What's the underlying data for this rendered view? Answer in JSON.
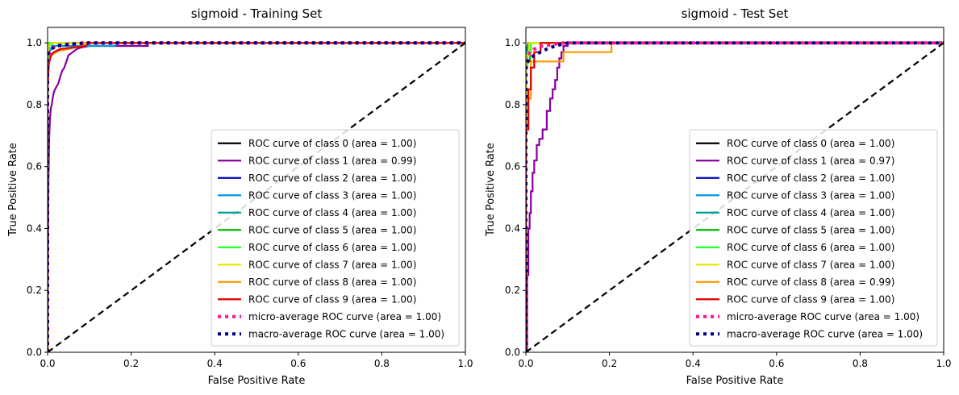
{
  "chart_data": [
    {
      "type": "line",
      "title": "sigmoid - Training Set",
      "xlabel": "False Positive Rate",
      "ylabel": "True Positive Rate",
      "xlim": [
        0.0,
        1.0
      ],
      "ylim": [
        0.0,
        1.05
      ],
      "xticks": [
        "0.0",
        "0.2",
        "0.4",
        "0.6",
        "0.8",
        "1.0"
      ],
      "yticks": [
        "0.0",
        "0.2",
        "0.4",
        "0.6",
        "0.8",
        "1.0"
      ],
      "grid": false,
      "legend_position": "lower right",
      "series": [
        {
          "name": "ROC curve of class 0 (area = 1.00)",
          "color": "#000000",
          "style": "solid",
          "x": [
            0,
            0,
            0.003,
            0.006,
            1.0
          ],
          "y": [
            0,
            0.97,
            0.995,
            1.0,
            1.0
          ]
        },
        {
          "name": "ROC curve of class 1 (area = 0.99)",
          "color": "#8800a0",
          "style": "solid",
          "x": [
            0,
            0.002,
            0.004,
            0.006,
            0.008,
            0.01,
            0.012,
            0.015,
            0.018,
            0.022,
            0.026,
            0.03,
            0.035,
            0.04,
            0.045,
            0.05,
            0.06,
            0.07,
            0.08,
            0.1,
            0.15,
            0.24,
            0.24,
            1.0
          ],
          "y": [
            0,
            0.55,
            0.7,
            0.76,
            0.79,
            0.8,
            0.82,
            0.84,
            0.85,
            0.86,
            0.87,
            0.89,
            0.91,
            0.92,
            0.94,
            0.96,
            0.97,
            0.98,
            0.985,
            0.99,
            0.99,
            0.99,
            1.0,
            1.0
          ]
        },
        {
          "name": "ROC curve of class 2 (area = 1.00)",
          "color": "#0000bb",
          "style": "solid",
          "x": [
            0,
            0,
            0.004,
            0.01,
            1.0
          ],
          "y": [
            0,
            0.96,
            0.99,
            1.0,
            1.0
          ]
        },
        {
          "name": "ROC curve of class 3 (area = 1.00)",
          "color": "#0099dd",
          "style": "solid",
          "x": [
            0,
            0,
            0.004,
            0.012,
            0.16,
            0.17,
            1.0
          ],
          "y": [
            0,
            0.92,
            0.97,
            0.99,
            0.99,
            1.0,
            1.0
          ]
        },
        {
          "name": "ROC curve of class 4 (area = 1.00)",
          "color": "#00a090",
          "style": "solid",
          "x": [
            0,
            0,
            0.003,
            0.015,
            1.0
          ],
          "y": [
            0,
            0.95,
            0.99,
            1.0,
            1.0
          ]
        },
        {
          "name": "ROC curve of class 5 (area = 1.00)",
          "color": "#00bb00",
          "style": "solid",
          "x": [
            0,
            0,
            0.004,
            0.01,
            1.0
          ],
          "y": [
            0,
            0.96,
            0.99,
            1.0,
            1.0
          ]
        },
        {
          "name": "ROC curve of class 6 (area = 1.00)",
          "color": "#22ff22",
          "style": "solid",
          "x": [
            0,
            0,
            0.003,
            0.03,
            1.0
          ],
          "y": [
            0,
            0.97,
            1.0,
            1.0,
            1.0
          ]
        },
        {
          "name": "ROC curve of class 7 (area = 1.00)",
          "color": "#e8e800",
          "style": "solid",
          "x": [
            0,
            0,
            0.003,
            0.01,
            1.0
          ],
          "y": [
            0,
            0.96,
            0.99,
            1.0,
            1.0
          ]
        },
        {
          "name": "ROC curve of class 8 (area = 1.00)",
          "color": "#ff9900",
          "style": "solid",
          "x": [
            0,
            0,
            0.004,
            0.01,
            0.02,
            0.03,
            0.05,
            0.08,
            0.09,
            1.0
          ],
          "y": [
            0,
            0.9,
            0.95,
            0.96,
            0.97,
            0.975,
            0.98,
            0.99,
            1.0,
            1.0
          ]
        },
        {
          "name": "ROC curve of class 9 (area = 1.00)",
          "color": "#dd0000",
          "style": "solid",
          "x": [
            0,
            0,
            0.003,
            0.008,
            0.015,
            0.03,
            0.09,
            0.1,
            1.0
          ],
          "y": [
            0,
            0.85,
            0.93,
            0.96,
            0.97,
            0.98,
            0.99,
            1.0,
            1.0
          ]
        },
        {
          "name": "micro-average ROC curve (area = 1.00)",
          "color": "#ff1493",
          "style": "dotted",
          "x": [
            0,
            0,
            0.002,
            0.005,
            0.01,
            0.02,
            0.04,
            0.08,
            1.0
          ],
          "y": [
            0,
            0.92,
            0.95,
            0.97,
            0.98,
            0.99,
            0.995,
            1.0,
            1.0
          ]
        },
        {
          "name": "macro-average ROC curve (area = 1.00)",
          "color": "#000080",
          "style": "dotted",
          "x": [
            0,
            0,
            0.003,
            0.008,
            0.02,
            0.05,
            0.1,
            1.0
          ],
          "y": [
            0,
            0.96,
            0.97,
            0.98,
            0.99,
            0.995,
            1.0,
            1.0
          ]
        },
        {
          "name": "",
          "color": "#000000",
          "style": "dashed",
          "legend": false,
          "x": [
            0,
            1
          ],
          "y": [
            0,
            1
          ]
        }
      ]
    },
    {
      "type": "line",
      "title": "sigmoid - Test Set",
      "xlabel": "False Positive Rate",
      "ylabel": "True Positive Rate",
      "xlim": [
        0.0,
        1.0
      ],
      "ylim": [
        0.0,
        1.05
      ],
      "xticks": [
        "0.0",
        "0.2",
        "0.4",
        "0.6",
        "0.8",
        "1.0"
      ],
      "yticks": [
        "0.0",
        "0.2",
        "0.4",
        "0.6",
        "0.8",
        "1.0"
      ],
      "grid": false,
      "legend_position": "lower right",
      "series": [
        {
          "name": "ROC curve of class 0 (area = 1.00)",
          "color": "#000000",
          "style": "solid",
          "x": [
            0,
            0,
            0.006,
            1.0
          ],
          "y": [
            0,
            0.97,
            1.0,
            1.0
          ]
        },
        {
          "name": "ROC curve of class 1 (area = 0.97)",
          "color": "#8800a0",
          "style": "solid",
          "x": [
            0,
            0.003,
            0.003,
            0.006,
            0.006,
            0.009,
            0.009,
            0.012,
            0.012,
            0.016,
            0.016,
            0.02,
            0.02,
            0.026,
            0.026,
            0.032,
            0.032,
            0.04,
            0.04,
            0.05,
            0.05,
            0.058,
            0.058,
            0.064,
            0.064,
            0.07,
            0.07,
            0.075,
            0.075,
            0.08,
            0.08,
            0.085,
            0.085,
            0.09,
            0.09,
            0.1,
            0.1,
            1.0
          ],
          "y": [
            0,
            0,
            0.25,
            0.25,
            0.4,
            0.4,
            0.45,
            0.45,
            0.52,
            0.52,
            0.58,
            0.58,
            0.62,
            0.62,
            0.67,
            0.67,
            0.69,
            0.69,
            0.72,
            0.72,
            0.78,
            0.78,
            0.82,
            0.82,
            0.85,
            0.85,
            0.88,
            0.88,
            0.92,
            0.92,
            0.95,
            0.95,
            0.97,
            0.97,
            0.99,
            0.99,
            1.0,
            1.0
          ]
        },
        {
          "name": "ROC curve of class 2 (area = 1.00)",
          "color": "#0000bb",
          "style": "solid",
          "x": [
            0,
            0,
            0.006,
            1.0
          ],
          "y": [
            0,
            0.95,
            1.0,
            1.0
          ]
        },
        {
          "name": "ROC curve of class 3 (area = 1.00)",
          "color": "#0099dd",
          "style": "solid",
          "x": [
            0,
            0,
            0.008,
            1.0
          ],
          "y": [
            0,
            0.96,
            1.0,
            1.0
          ]
        },
        {
          "name": "ROC curve of class 4 (area = 1.00)",
          "color": "#00a090",
          "style": "solid",
          "x": [
            0,
            0,
            0.006,
            1.0
          ],
          "y": [
            0,
            0.97,
            1.0,
            1.0
          ]
        },
        {
          "name": "ROC curve of class 5 (area = 1.00)",
          "color": "#00bb00",
          "style": "solid",
          "x": [
            0,
            0,
            0.01,
            0.01,
            1.0
          ],
          "y": [
            0,
            0.94,
            0.94,
            1.0,
            1.0
          ]
        },
        {
          "name": "ROC curve of class 6 (area = 1.00)",
          "color": "#22ff22",
          "style": "solid",
          "x": [
            0,
            0,
            0.004,
            0.004,
            0.012,
            0.012,
            1.0
          ],
          "y": [
            0,
            0.93,
            0.93,
            0.97,
            0.97,
            1.0,
            1.0
          ]
        },
        {
          "name": "ROC curve of class 7 (area = 1.00)",
          "color": "#e8e800",
          "style": "solid",
          "x": [
            0,
            0,
            0.008,
            0.008,
            1.0
          ],
          "y": [
            0,
            0.96,
            0.96,
            1.0,
            1.0
          ]
        },
        {
          "name": "ROC curve of class 8 (area = 0.99)",
          "color": "#ff9900",
          "style": "solid",
          "x": [
            0,
            0,
            0.012,
            0.012,
            0.03,
            0.03,
            0.09,
            0.09,
            0.205,
            0.205,
            1.0
          ],
          "y": [
            0,
            0.82,
            0.82,
            0.94,
            0.94,
            0.94,
            0.94,
            0.97,
            0.97,
            1.0,
            1.0
          ]
        },
        {
          "name": "ROC curve of class 9 (area = 1.00)",
          "color": "#dd0000",
          "style": "solid",
          "x": [
            0,
            0,
            0.006,
            0.006,
            0.012,
            0.012,
            0.02,
            0.02,
            0.035,
            0.035,
            1.0
          ],
          "y": [
            0,
            0.72,
            0.72,
            0.85,
            0.85,
            0.92,
            0.92,
            0.97,
            0.97,
            1.0,
            1.0
          ]
        },
        {
          "name": "micro-average ROC curve (area = 1.00)",
          "color": "#ff1493",
          "style": "dotted",
          "x": [
            0,
            0,
            0.002,
            0.005,
            0.01,
            0.02,
            0.04,
            0.09,
            1.0
          ],
          "y": [
            0,
            0.9,
            0.93,
            0.95,
            0.97,
            0.98,
            0.99,
            1.0,
            1.0
          ]
        },
        {
          "name": "macro-average ROC curve (area = 1.00)",
          "color": "#000080",
          "style": "dotted",
          "x": [
            0,
            0,
            0.01,
            0.02,
            0.035,
            0.05,
            0.07,
            0.1,
            1.0
          ],
          "y": [
            0,
            0.93,
            0.95,
            0.96,
            0.97,
            0.98,
            0.99,
            1.0,
            1.0
          ]
        },
        {
          "name": "",
          "color": "#000000",
          "style": "dashed",
          "legend": false,
          "x": [
            0,
            1
          ],
          "y": [
            0,
            1
          ]
        }
      ]
    }
  ]
}
